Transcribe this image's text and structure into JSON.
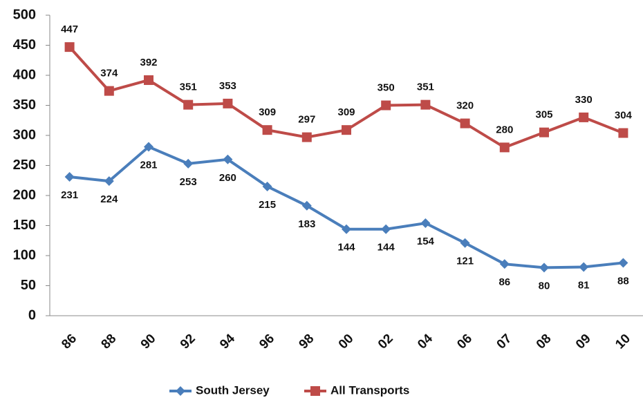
{
  "chart_data": {
    "type": "line",
    "categories": [
      "86",
      "88",
      "90",
      "92",
      "94",
      "96",
      "98",
      "00",
      "02",
      "04",
      "06",
      "07",
      "08",
      "09",
      "10"
    ],
    "series": [
      {
        "name": "South Jersey",
        "color": "#4a7ebb",
        "marker": "diamond",
        "values": [
          231,
          224,
          281,
          253,
          260,
          215,
          183,
          144,
          144,
          154,
          121,
          86,
          80,
          81,
          88
        ]
      },
      {
        "name": "All Transports",
        "color": "#be4b48",
        "marker": "square",
        "values": [
          447,
          374,
          392,
          351,
          353,
          309,
          297,
          309,
          350,
          351,
          320,
          280,
          305,
          330,
          304
        ]
      }
    ],
    "ylim": [
      0,
      500
    ],
    "yticks": [
      0,
      50,
      100,
      150,
      200,
      250,
      300,
      350,
      400,
      450,
      500
    ],
    "grid": false,
    "legend": "bottom"
  }
}
